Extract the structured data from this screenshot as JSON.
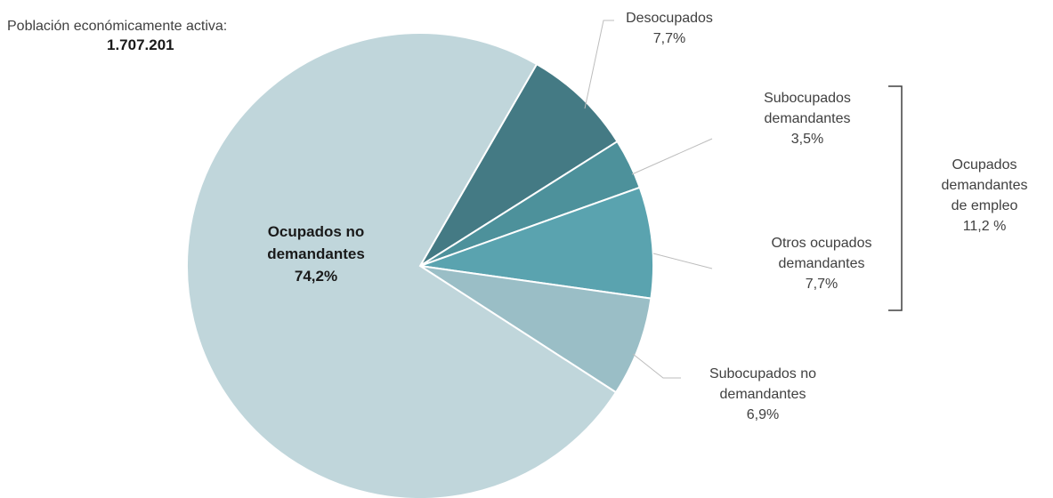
{
  "header": {
    "label": "Población económicamente activa:",
    "value": "1.707.201"
  },
  "chart_data": {
    "type": "pie",
    "title": "",
    "start_angle_deg": 30,
    "direction": "clockwise",
    "slices": [
      {
        "label": [
          "Desocupados"
        ],
        "display_value": "7,7%",
        "value": 7.7,
        "color": "#447A84"
      },
      {
        "label": [
          "Subocupados",
          "demandantes"
        ],
        "display_value": "3,5%",
        "value": 3.5,
        "color": "#4D919B"
      },
      {
        "label": [
          "Otros ocupados",
          "demandantes"
        ],
        "display_value": "7,7%",
        "value": 7.7,
        "color": "#5AA3AF"
      },
      {
        "label": [
          "Subocupados no",
          "demandantes"
        ],
        "display_value": "6,9%",
        "value": 6.9,
        "color": "#9ABEC6"
      },
      {
        "label": [
          "Ocupados no",
          "demandantes"
        ],
        "display_value": "74,2%",
        "value": 74.2,
        "color": "#C0D6DB"
      }
    ],
    "group": {
      "label": [
        "Ocupados",
        "demandantes",
        "de empleo"
      ],
      "display_value": "11,2 %",
      "members": [
        "Subocupados demandantes",
        "Otros ocupados demandantes"
      ]
    }
  }
}
